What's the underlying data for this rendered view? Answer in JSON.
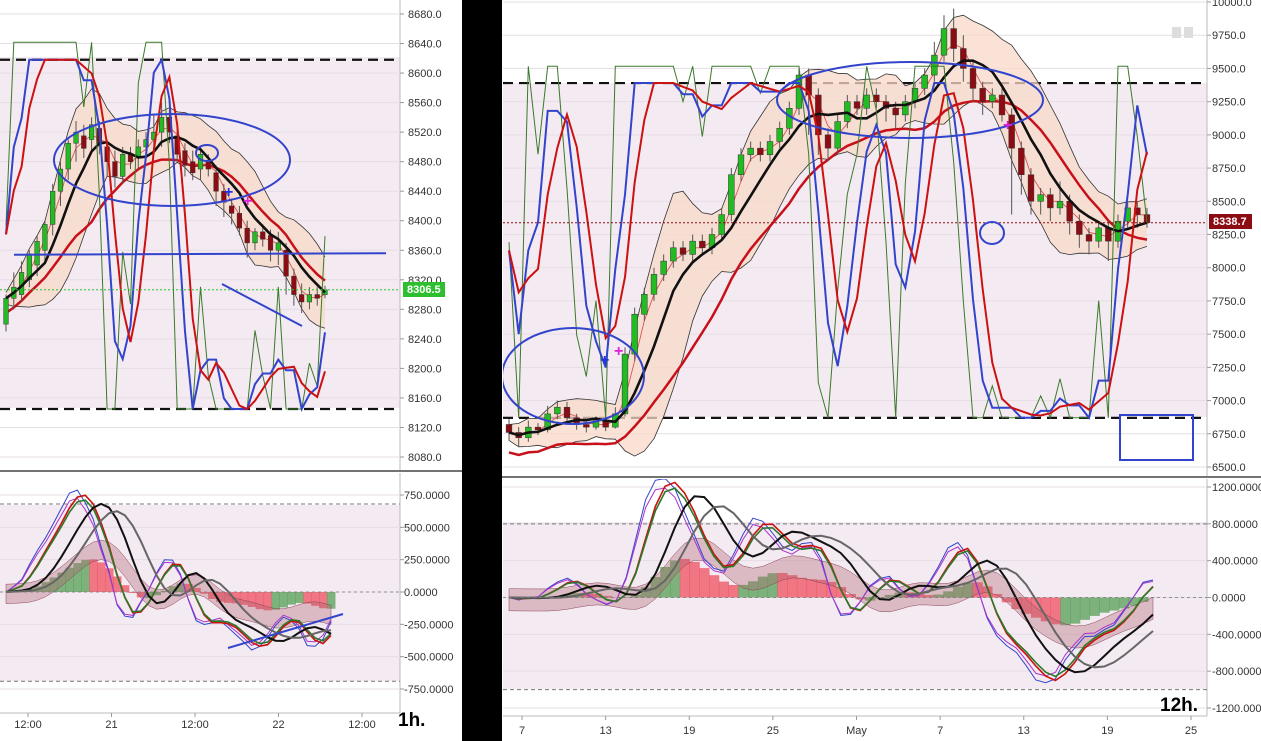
{
  "chart_data": [
    {
      "type": "candlestick",
      "pane": "left-price",
      "title": "",
      "ylim": [
        8060,
        8690
      ],
      "y_ticks": [
        "8680.0",
        "8640.0",
        "8600.0",
        "8560.0",
        "8520.0",
        "8480.0",
        "8440.0",
        "8400.0",
        "8360.0",
        "8320.0",
        "8280.0",
        "8240.0",
        "8200.0",
        "8160.0",
        "8120.0",
        "8080.0"
      ],
      "current_price_label": "8306.5",
      "current_price": 8306.5,
      "dashed_levels": [
        8618,
        8145
      ],
      "trendline_level": 8354,
      "candles": [
        [
          8260,
          8295,
          8250,
          8300
        ],
        [
          8295,
          8310,
          8280,
          8330
        ],
        [
          8300,
          8330,
          8290,
          8345
        ],
        [
          8320,
          8355,
          8310,
          8360
        ],
        [
          8340,
          8372,
          8325,
          8380
        ],
        [
          8360,
          8395,
          8345,
          8400
        ],
        [
          8395,
          8440,
          8380,
          8450
        ],
        [
          8440,
          8470,
          8420,
          8480
        ],
        [
          8470,
          8505,
          8455,
          8510
        ],
        [
          8505,
          8520,
          8480,
          8535
        ],
        [
          8515,
          8498,
          8485,
          8530
        ],
        [
          8510,
          8530,
          8495,
          8540
        ],
        [
          8525,
          8505,
          8490,
          8535
        ],
        [
          8500,
          8480,
          8460,
          8510
        ],
        [
          8480,
          8460,
          8445,
          8495
        ],
        [
          8460,
          8490,
          8450,
          8500
        ],
        [
          8490,
          8480,
          8470,
          8500
        ],
        [
          8485,
          8500,
          8470,
          8510
        ],
        [
          8500,
          8510,
          8485,
          8520
        ],
        [
          8510,
          8520,
          8495,
          8545
        ],
        [
          8520,
          8540,
          8500,
          8560
        ],
        [
          8540,
          8520,
          8505,
          8550
        ],
        [
          8515,
          8490,
          8480,
          8525
        ],
        [
          8495,
          8475,
          8460,
          8505
        ],
        [
          8480,
          8465,
          8455,
          8495
        ],
        [
          8470,
          8490,
          8455,
          8500
        ],
        [
          8480,
          8470,
          8460,
          8490
        ],
        [
          8465,
          8440,
          8420,
          8475
        ],
        [
          8440,
          8425,
          8405,
          8450
        ],
        [
          8420,
          8410,
          8395,
          8430
        ],
        [
          8410,
          8390,
          8380,
          8420
        ],
        [
          8390,
          8370,
          8350,
          8400
        ],
        [
          8370,
          8385,
          8360,
          8390
        ],
        [
          8385,
          8375,
          8365,
          8395
        ],
        [
          8380,
          8360,
          8345,
          8388
        ],
        [
          8360,
          8370,
          8340,
          8385
        ],
        [
          8360,
          8325,
          8300,
          8370
        ],
        [
          8325,
          8300,
          8285,
          8335
        ],
        [
          8300,
          8290,
          8275,
          8315
        ],
        [
          8290,
          8300,
          8280,
          8310
        ],
        [
          8300,
          8295,
          8285,
          8310
        ],
        [
          8300,
          8306.5,
          8295,
          8312
        ]
      ],
      "x_ticks": [
        "12:00",
        "21",
        "12:00",
        "22",
        "12:00"
      ],
      "annotation": "1h."
    },
    {
      "type": "oscillator",
      "pane": "left-oscillator",
      "ylim": [
        -850,
        900
      ],
      "y_ticks": [
        "750.0000",
        "500.0000",
        "250.0000",
        "0.0000",
        "-250.0000",
        "-500.0000",
        "-750.0000"
      ],
      "dashed_levels": [
        680,
        -690
      ]
    },
    {
      "type": "candlestick",
      "pane": "right-price",
      "title": "",
      "ylim": [
        6500,
        10000
      ],
      "y_ticks": [
        "10000.0",
        "9750.0",
        "9500.0",
        "9250.0",
        "9000.0",
        "8750.0",
        "8500.0",
        "8250.0",
        "8000.0",
        "7750.0",
        "7500.0",
        "7250.0",
        "7000.0",
        "6750.0",
        "6500.0"
      ],
      "current_price_label": "8338.7",
      "current_price": 8338.7,
      "dashed_levels": [
        9390,
        6870
      ],
      "candles": [
        [
          6820,
          6760,
          6700,
          6860
        ],
        [
          6760,
          6720,
          6650,
          6800
        ],
        [
          6720,
          6800,
          6690,
          6850
        ],
        [
          6800,
          6780,
          6740,
          6830
        ],
        [
          6780,
          6900,
          6760,
          6960
        ],
        [
          6900,
          6950,
          6860,
          7000
        ],
        [
          6950,
          6870,
          6840,
          6990
        ],
        [
          6870,
          6820,
          6780,
          6900
        ],
        [
          6820,
          6800,
          6760,
          6850
        ],
        [
          6800,
          6850,
          6780,
          6880
        ],
        [
          6850,
          6800,
          6770,
          6880
        ],
        [
          6800,
          6900,
          6790,
          6950
        ],
        [
          6900,
          7350,
          6880,
          7400
        ],
        [
          7350,
          7650,
          7300,
          7700
        ],
        [
          7650,
          7800,
          7600,
          7850
        ],
        [
          7800,
          7950,
          7750,
          8000
        ],
        [
          7950,
          8050,
          7900,
          8100
        ],
        [
          8050,
          8150,
          8000,
          8200
        ],
        [
          8150,
          8100,
          8050,
          8200
        ],
        [
          8100,
          8200,
          8050,
          8250
        ],
        [
          8200,
          8150,
          8100,
          8250
        ],
        [
          8150,
          8250,
          8100,
          8300
        ],
        [
          8250,
          8400,
          8200,
          8450
        ],
        [
          8400,
          8700,
          8350,
          8750
        ],
        [
          8700,
          8850,
          8650,
          8900
        ],
        [
          8850,
          8900,
          8800,
          8950
        ],
        [
          8900,
          8850,
          8800,
          8950
        ],
        [
          8850,
          8950,
          8800,
          9000
        ],
        [
          8950,
          9050,
          8900,
          9100
        ],
        [
          9050,
          9200,
          9000,
          9250
        ],
        [
          9200,
          9450,
          9150,
          9500
        ],
        [
          9450,
          9300,
          9000,
          9500
        ],
        [
          9300,
          9000,
          8850,
          9350
        ],
        [
          9000,
          8900,
          8800,
          9050
        ],
        [
          8900,
          9100,
          8850,
          9150
        ],
        [
          9100,
          9250,
          9050,
          9300
        ],
        [
          9250,
          9200,
          9150,
          9300
        ],
        [
          9200,
          9300,
          9150,
          9350
        ],
        [
          9300,
          9250,
          9200,
          9350
        ],
        [
          9250,
          9200,
          9100,
          9300
        ],
        [
          9200,
          9150,
          9050,
          9250
        ],
        [
          9150,
          9250,
          9100,
          9300
        ],
        [
          9250,
          9350,
          9200,
          9400
        ],
        [
          9350,
          9450,
          9300,
          9500
        ],
        [
          9450,
          9600,
          9400,
          9700
        ],
        [
          9600,
          9800,
          9550,
          9900
        ],
        [
          9800,
          9650,
          9550,
          9950
        ],
        [
          9650,
          9500,
          9400,
          9750
        ],
        [
          9500,
          9350,
          9250,
          9550
        ],
        [
          9350,
          9250,
          9150,
          9400
        ],
        [
          9250,
          9300,
          9200,
          9350
        ],
        [
          9300,
          9150,
          9100,
          9350
        ],
        [
          9150,
          8900,
          8400,
          9200
        ],
        [
          8900,
          8700,
          8550,
          8950
        ],
        [
          8700,
          8500,
          8400,
          8750
        ],
        [
          8500,
          8550,
          8400,
          8600
        ],
        [
          8550,
          8450,
          8350,
          8600
        ],
        [
          8450,
          8500,
          8400,
          8650
        ],
        [
          8500,
          8350,
          8250,
          8550
        ],
        [
          8350,
          8250,
          8150,
          8400
        ],
        [
          8250,
          8200,
          8100,
          8300
        ],
        [
          8200,
          8300,
          8150,
          8350
        ],
        [
          8300,
          8200,
          8050,
          8350
        ],
        [
          8200,
          8350,
          8150,
          8400
        ],
        [
          8350,
          8450,
          8300,
          8500
        ],
        [
          8450,
          8400,
          8300,
          8500
        ],
        [
          8400,
          8338.7,
          8300,
          8450
        ]
      ],
      "x_ticks": [
        "7",
        "13",
        "19",
        "25",
        "May",
        "7",
        "13",
        "19",
        "25"
      ],
      "annotation": "12h."
    },
    {
      "type": "oscillator",
      "pane": "right-oscillator",
      "ylim": [
        -1300,
        1300
      ],
      "y_ticks": [
        "1200.0000",
        "800.0000",
        "400.0000",
        "0.0000",
        "-400.0000",
        "-800.0000",
        "-1200.0000"
      ],
      "dashed_levels": [
        800,
        -1000
      ]
    }
  ]
}
